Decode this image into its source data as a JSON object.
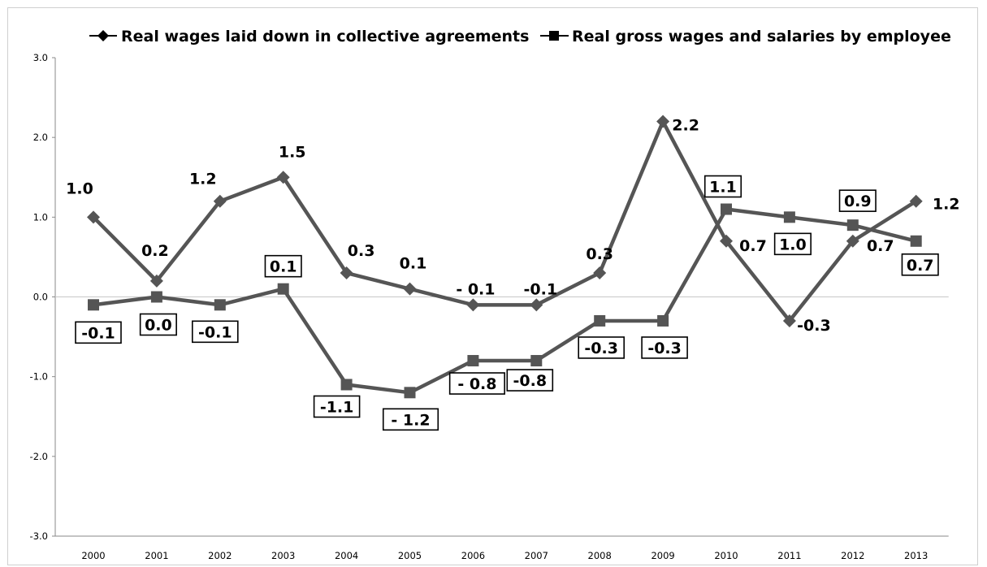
{
  "chart_data": {
    "type": "line",
    "categories": [
      "2000",
      "2001",
      "2002",
      "2003",
      "2004",
      "2005",
      "2006",
      "2007",
      "2008",
      "2009",
      "2010",
      "2011",
      "2012",
      "2013"
    ],
    "y_ticks": [
      "3.0",
      "2.0",
      "1.0",
      "0.0",
      "-1.0",
      "-2.0",
      "-3.0"
    ],
    "ylim": [
      -3,
      3
    ],
    "grid": false,
    "legend_position": "top",
    "line_color": "#555555",
    "series": [
      {
        "name": "Real wages laid down in collective agreements",
        "marker": "diamond",
        "values": [
          1.0,
          0.2,
          1.2,
          1.5,
          0.3,
          0.1,
          -0.1,
          -0.1,
          0.3,
          2.2,
          0.7,
          -0.3,
          0.7,
          1.2
        ],
        "labels": [
          "1.0",
          "0.2",
          "1.2",
          "1.5",
          "0.3",
          "0.1",
          "- 0.1",
          "-0.1",
          "0.3",
          "2.2",
          "0.7",
          "-0.3",
          "0.7",
          "1.2"
        ]
      },
      {
        "name": "Real gross wages and salaries by employee",
        "marker": "square",
        "values": [
          -0.1,
          0.0,
          -0.1,
          0.1,
          -1.1,
          -1.2,
          -0.8,
          -0.8,
          -0.3,
          -0.3,
          1.1,
          1.0,
          0.9,
          0.7
        ],
        "labels": [
          "-0.1",
          "0.0",
          "-0.1",
          "0.1",
          "-1.1",
          "- 1.2",
          "- 0.8",
          "-0.8",
          "-0.3",
          "-0.3",
          "1.1",
          "1.0",
          "0.9",
          "0.7"
        ]
      }
    ]
  }
}
